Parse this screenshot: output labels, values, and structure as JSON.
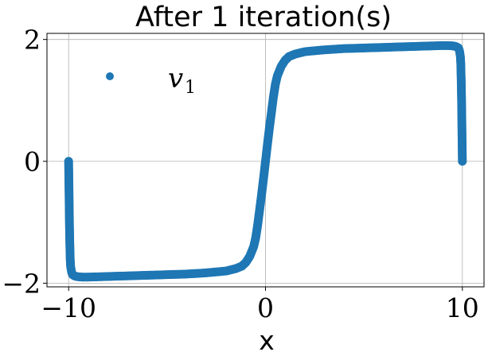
{
  "chart_data": {
    "type": "scatter",
    "title": "After 1 iteration(s)",
    "xlabel": "x",
    "ylabel": "",
    "xlim": [
      -11.1,
      11.1
    ],
    "ylim": [
      -2.06,
      2.1
    ],
    "xticks": [
      -10,
      0,
      10
    ],
    "xtick_labels": [
      "−10",
      "0",
      "10"
    ],
    "yticks": [
      -2,
      0,
      2
    ],
    "ytick_labels": [
      "−2",
      "0",
      "2"
    ],
    "grid": true,
    "legend_position": "upper-left",
    "series": [
      {
        "name": "v",
        "name_subscript": "1",
        "color": "#1f77b4",
        "x": [
          -10.0,
          -9.98,
          -9.96,
          -9.94,
          -9.92,
          -9.9,
          -9.85,
          -9.8,
          -9.7,
          -9.6,
          -9.5,
          -9.3,
          -9.0,
          -8.0,
          -7.0,
          -6.0,
          -5.0,
          -4.0,
          -3.0,
          -2.0,
          -1.5,
          -1.2,
          -1.0,
          -0.8,
          -0.6,
          -0.5,
          -0.4,
          -0.3,
          -0.2,
          -0.1,
          0.0,
          0.1,
          0.2,
          0.3,
          0.4,
          0.5,
          0.6,
          0.8,
          1.0,
          1.2,
          1.5,
          2.0,
          3.0,
          4.0,
          5.0,
          6.0,
          7.0,
          8.0,
          9.0,
          9.3,
          9.5,
          9.6,
          9.7,
          9.8,
          9.85,
          9.9,
          9.92,
          9.94,
          9.96,
          9.98,
          10.0
        ],
        "y": [
          0.0,
          -0.5,
          -1.0,
          -1.35,
          -1.6,
          -1.72,
          -1.82,
          -1.86,
          -1.88,
          -1.89,
          -1.895,
          -1.9,
          -1.9,
          -1.89,
          -1.88,
          -1.87,
          -1.86,
          -1.85,
          -1.83,
          -1.8,
          -1.76,
          -1.72,
          -1.66,
          -1.56,
          -1.4,
          -1.26,
          -1.05,
          -0.8,
          -0.55,
          -0.28,
          0.0,
          0.28,
          0.55,
          0.8,
          1.05,
          1.26,
          1.4,
          1.56,
          1.66,
          1.72,
          1.76,
          1.8,
          1.83,
          1.85,
          1.86,
          1.87,
          1.88,
          1.89,
          1.9,
          1.9,
          1.895,
          1.89,
          1.88,
          1.86,
          1.82,
          1.72,
          1.6,
          1.35,
          1.0,
          0.5,
          0.0
        ]
      }
    ]
  }
}
